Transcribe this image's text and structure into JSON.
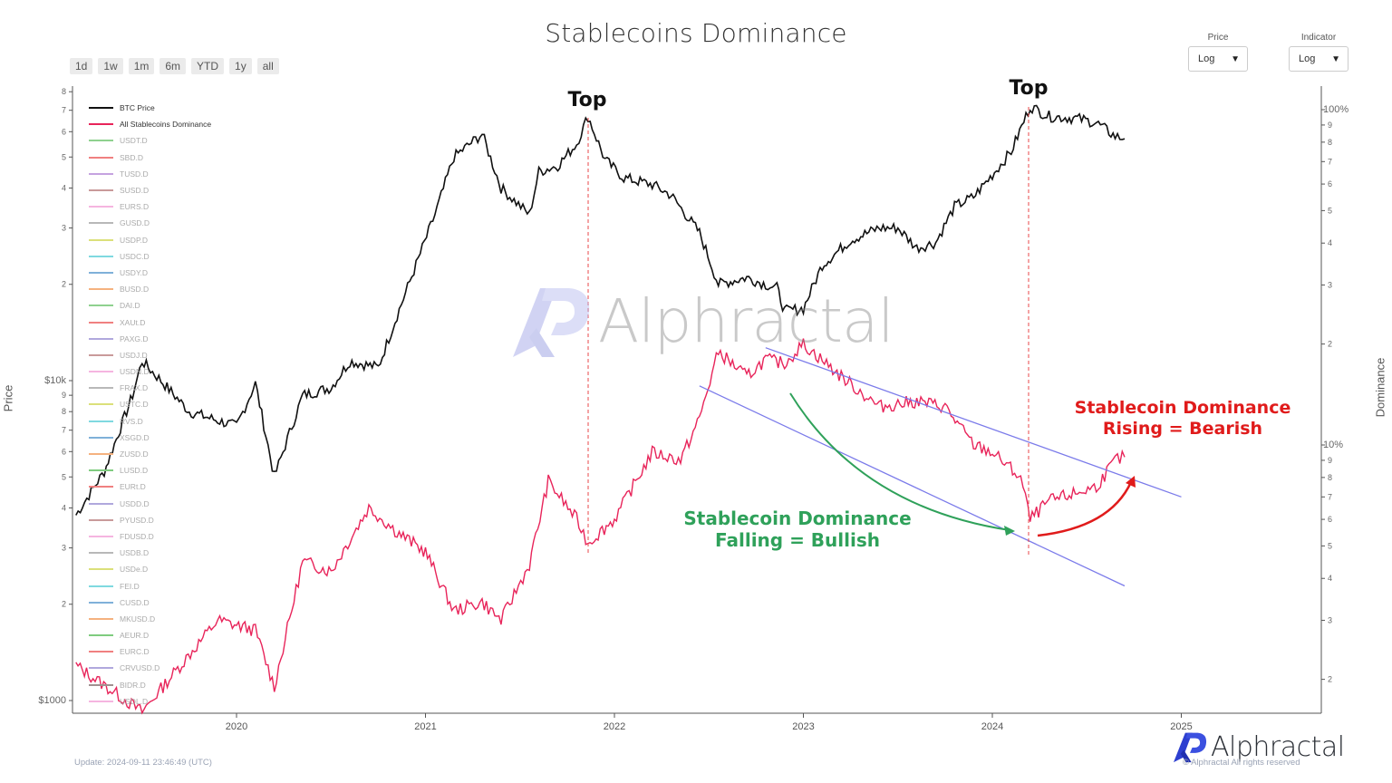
{
  "header": {
    "title": "Stablecoins Dominance",
    "range_buttons": [
      "1d",
      "1w",
      "1m",
      "6m",
      "YTD",
      "1y",
      "all"
    ],
    "price_selector": {
      "label": "Price",
      "value": "Log"
    },
    "indicator_selector": {
      "label": "Indicator",
      "value": "Log"
    }
  },
  "axes": {
    "left_label": "Price",
    "right_label": "Dominance",
    "left_ticks": [
      "8",
      "7",
      "6",
      "5",
      "4",
      "3",
      "2",
      "$10k",
      "9",
      "8",
      "7",
      "6",
      "5",
      "4",
      "3",
      "2",
      "$1000"
    ],
    "right_ticks": [
      "100%",
      "9",
      "8",
      "7",
      "6",
      "5",
      "4",
      "3",
      "2",
      "10%",
      "9",
      "8",
      "7",
      "6",
      "5",
      "4",
      "3",
      "2"
    ],
    "x_ticks": [
      "2020",
      "2021",
      "2022",
      "2023",
      "2024",
      "2025"
    ]
  },
  "legend": [
    {
      "label": "BTC Price",
      "color": "#111111",
      "active": true
    },
    {
      "label": "All Stablecoins Dominance",
      "color": "#e8245a",
      "active": true
    },
    {
      "label": "USDT.D",
      "color": "#8fd18f"
    },
    {
      "label": "SBD.D",
      "color": "#f08080"
    },
    {
      "label": "TUSD.D",
      "color": "#c5a3e0"
    },
    {
      "label": "SUSD.D",
      "color": "#c99a9a"
    },
    {
      "label": "EURS.D",
      "color": "#f5b5e0"
    },
    {
      "label": "GUSD.D",
      "color": "#b8b8b8"
    },
    {
      "label": "USDP.D",
      "color": "#dbe07a"
    },
    {
      "label": "USDC.D",
      "color": "#7fd9e0"
    },
    {
      "label": "USDY.D",
      "color": "#7fb0d9"
    },
    {
      "label": "BUSD.D",
      "color": "#f5b27f"
    },
    {
      "label": "DAI.D",
      "color": "#8fd18f"
    },
    {
      "label": "XAUt.D",
      "color": "#f08080"
    },
    {
      "label": "PAXG.D",
      "color": "#b0a8dd"
    },
    {
      "label": "USDJ.D",
      "color": "#c99a9a"
    },
    {
      "label": "USDN.D",
      "color": "#f5b5e0"
    },
    {
      "label": "FRAX.D",
      "color": "#b8b8b8"
    },
    {
      "label": "USTC.D",
      "color": "#dbe07a"
    },
    {
      "label": "RVS.D",
      "color": "#7fd9e0"
    },
    {
      "label": "XSGD.D",
      "color": "#7fb0d9"
    },
    {
      "label": "ZUSD.D",
      "color": "#f5b27f"
    },
    {
      "label": "LUSD.D",
      "color": "#7fcc7f"
    },
    {
      "label": "EURt.D",
      "color": "#f08080"
    },
    {
      "label": "USDD.D",
      "color": "#b0a8dd"
    },
    {
      "label": "PYUSD.D",
      "color": "#c99a9a"
    },
    {
      "label": "FDUSD.D",
      "color": "#f5b5e0"
    },
    {
      "label": "USDB.D",
      "color": "#b8b8b8"
    },
    {
      "label": "USDe.D",
      "color": "#dbe07a"
    },
    {
      "label": "FEI.D",
      "color": "#7fd9e0"
    },
    {
      "label": "CUSD.D",
      "color": "#7fb0d9"
    },
    {
      "label": "MKUSD.D",
      "color": "#f5b27f"
    },
    {
      "label": "AEUR.D",
      "color": "#7fcc7f"
    },
    {
      "label": "EURC.D",
      "color": "#f08080"
    },
    {
      "label": "CRVUSD.D",
      "color": "#b0a8dd"
    },
    {
      "label": "BIDR.D",
      "color": "#a09090"
    },
    {
      "label": "USDL.D",
      "color": "#f5b5e0"
    }
  ],
  "annotations": {
    "top1": "Top",
    "top2": "Top",
    "bullish_line1": "Stablecoin Dominance",
    "bullish_line2": "Falling = Bullish",
    "bearish_line1": "Stablecoin Dominance",
    "bearish_line2": "Rising = Bearish"
  },
  "watermark": "Alphractal",
  "footer": {
    "update": "Update: 2024-09-11 23:46:49 (UTC)",
    "brand": "Alphractal",
    "copyright": "© Alphractal All rights reserved"
  },
  "colors": {
    "btc": "#111111",
    "dominance": "#e8245a",
    "channel": "#7b7bea",
    "top_marker": "#e8474a",
    "green_arrow": "#2fa15a",
    "red_arrow": "#e01b1b",
    "brand_blue": "#2d3fd0"
  },
  "chart_data": {
    "type": "line",
    "title": "Stablecoins Dominance",
    "xlabel": "",
    "ylabel": "Price",
    "y2label": "Dominance",
    "y_scale": "log",
    "y2_scale": "log",
    "ylim": [
      900,
      90000
    ],
    "y2lim": [
      1.6,
      130
    ],
    "x_ticks": [
      "2020",
      "2021",
      "2022",
      "2023",
      "2024",
      "2025"
    ],
    "legend_position": "top-left (inside plot)",
    "grid": false,
    "series": [
      {
        "name": "BTC Price",
        "axis": "left",
        "color": "#111111",
        "x": [
          2019.15,
          2019.3,
          2019.45,
          2019.5,
          2019.6,
          2019.75,
          2019.9,
          2020.0,
          2020.1,
          2020.2,
          2020.35,
          2020.5,
          2020.6,
          2020.75,
          2020.85,
          2020.95,
          2021.05,
          2021.15,
          2021.3,
          2021.4,
          2021.55,
          2021.6,
          2021.7,
          2021.8,
          2021.86,
          2021.95,
          2022.05,
          2022.2,
          2022.3,
          2022.45,
          2022.55,
          2022.7,
          2022.8,
          2022.86,
          2022.9,
          2023.0,
          2023.1,
          2023.25,
          2023.4,
          2023.5,
          2023.6,
          2023.7,
          2023.8,
          2023.9,
          2024.0,
          2024.1,
          2024.2,
          2024.3,
          2024.45,
          2024.55,
          2024.65,
          2024.7
        ],
        "values": [
          3800,
          5200,
          9000,
          11500,
          10000,
          8000,
          7500,
          7200,
          9800,
          5000,
          9000,
          9500,
          11500,
          11000,
          16000,
          23000,
          33000,
          50000,
          59000,
          40000,
          33000,
          45000,
          47000,
          55000,
          67000,
          49000,
          43000,
          41000,
          38000,
          29000,
          20000,
          21000,
          20000,
          19500,
          16500,
          16800,
          23000,
          27500,
          30000,
          30000,
          26000,
          27000,
          35000,
          37500,
          44000,
          52000,
          72000,
          67000,
          66000,
          64000,
          58000,
          57000
        ]
      },
      {
        "name": "All Stablecoins Dominance",
        "axis": "right",
        "color": "#e8245a",
        "x": [
          2019.15,
          2019.5,
          2019.9,
          2020.1,
          2020.2,
          2020.35,
          2020.5,
          2020.7,
          2020.85,
          2021.0,
          2021.15,
          2021.3,
          2021.4,
          2021.55,
          2021.65,
          2021.8,
          2021.86,
          2022.0,
          2022.2,
          2022.35,
          2022.45,
          2022.55,
          2022.7,
          2022.8,
          2022.9,
          2023.0,
          2023.2,
          2023.4,
          2023.6,
          2023.75,
          2023.9,
          2024.0,
          2024.15,
          2024.2,
          2024.3,
          2024.45,
          2024.55,
          2024.65,
          2024.7
        ],
        "values": [
          2.2,
          1.6,
          3.0,
          2.8,
          1.9,
          4.5,
          4.2,
          6.5,
          5.5,
          4.8,
          3.2,
          3.4,
          3.0,
          4.4,
          7.8,
          6.0,
          5.1,
          6.0,
          9.5,
          9.0,
          12.0,
          19.0,
          16.0,
          18.0,
          17.5,
          20.0,
          16.0,
          13.0,
          13.5,
          13.0,
          10.0,
          9.5,
          8.0,
          6.0,
          6.8,
          7.2,
          7.5,
          9.0,
          9.2
        ]
      }
    ],
    "annotations": [
      {
        "text": "Top",
        "x": 2021.86,
        "marker": "vertical dashed red line"
      },
      {
        "text": "Top",
        "x": 2024.2,
        "marker": "vertical dashed red line"
      },
      {
        "text": "Stablecoin Dominance Falling = Bullish",
        "color": "#2fa15a",
        "arrow": "curved green arrow down along channel"
      },
      {
        "text": "Stablecoin Dominance Rising = Bearish",
        "color": "#e01b1b",
        "arrow": "curved red arrow up from 2024 low"
      },
      {
        "text": "Descending channel",
        "lines": [
          [
            2022.8,
            19.5,
            2025.0,
            7.0
          ],
          [
            2022.45,
            15.0,
            2024.7,
            3.8
          ]
        ],
        "color": "#7b7bea"
      }
    ]
  }
}
